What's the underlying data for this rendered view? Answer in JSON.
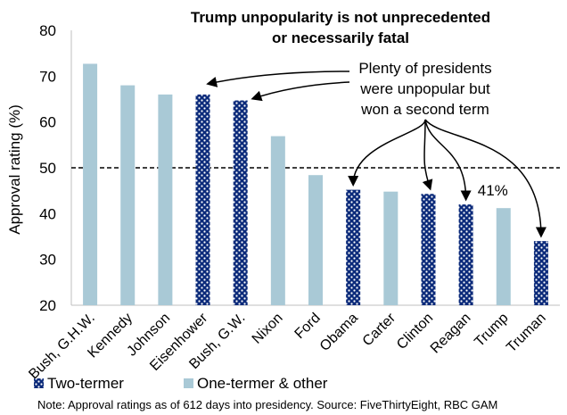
{
  "chart_data": {
    "type": "bar",
    "title_line1": "Trump unpopularity is not  unprecedented",
    "title_line2": "or necessarily fatal",
    "ylabel": "Approval rating (%)",
    "xlabel": "",
    "ylim": [
      20,
      80
    ],
    "yticks": [
      20,
      30,
      40,
      50,
      60,
      70,
      80
    ],
    "reference_line": 50,
    "categories": [
      "Bush, G.H.W.",
      "Kennedy",
      "Johnson",
      "Eisenhower",
      "Bush, G.W.",
      "Nixon",
      "Ford",
      "Obama",
      "Carter",
      "Clinton",
      "Reagan",
      "Trump",
      "Truman"
    ],
    "values": [
      72.7,
      68.0,
      66.0,
      66.0,
      64.7,
      56.9,
      48.4,
      45.2,
      44.8,
      44.3,
      42.0,
      41.2,
      34.0
    ],
    "groups": [
      "one",
      "one",
      "one",
      "two",
      "two",
      "one",
      "one",
      "two",
      "one",
      "two",
      "two",
      "one",
      "two"
    ],
    "data_label": {
      "category": "Trump",
      "text": "41%"
    },
    "annotation": [
      "Plenty of presidents",
      "were unpopular but",
      "won a second term"
    ],
    "legend": {
      "two": "Two-termer",
      "one": "One-termer & other"
    },
    "colors": {
      "one": "#a9c9d6",
      "two_base": "#0b2a7a",
      "two_dot": "#ffffff",
      "grid": "#bfbfbf",
      "axis": "#000000"
    }
  },
  "note": "Note: Approval ratings as of 612 days into presidency. Source: FiveThirtyEight, RBC GAM"
}
